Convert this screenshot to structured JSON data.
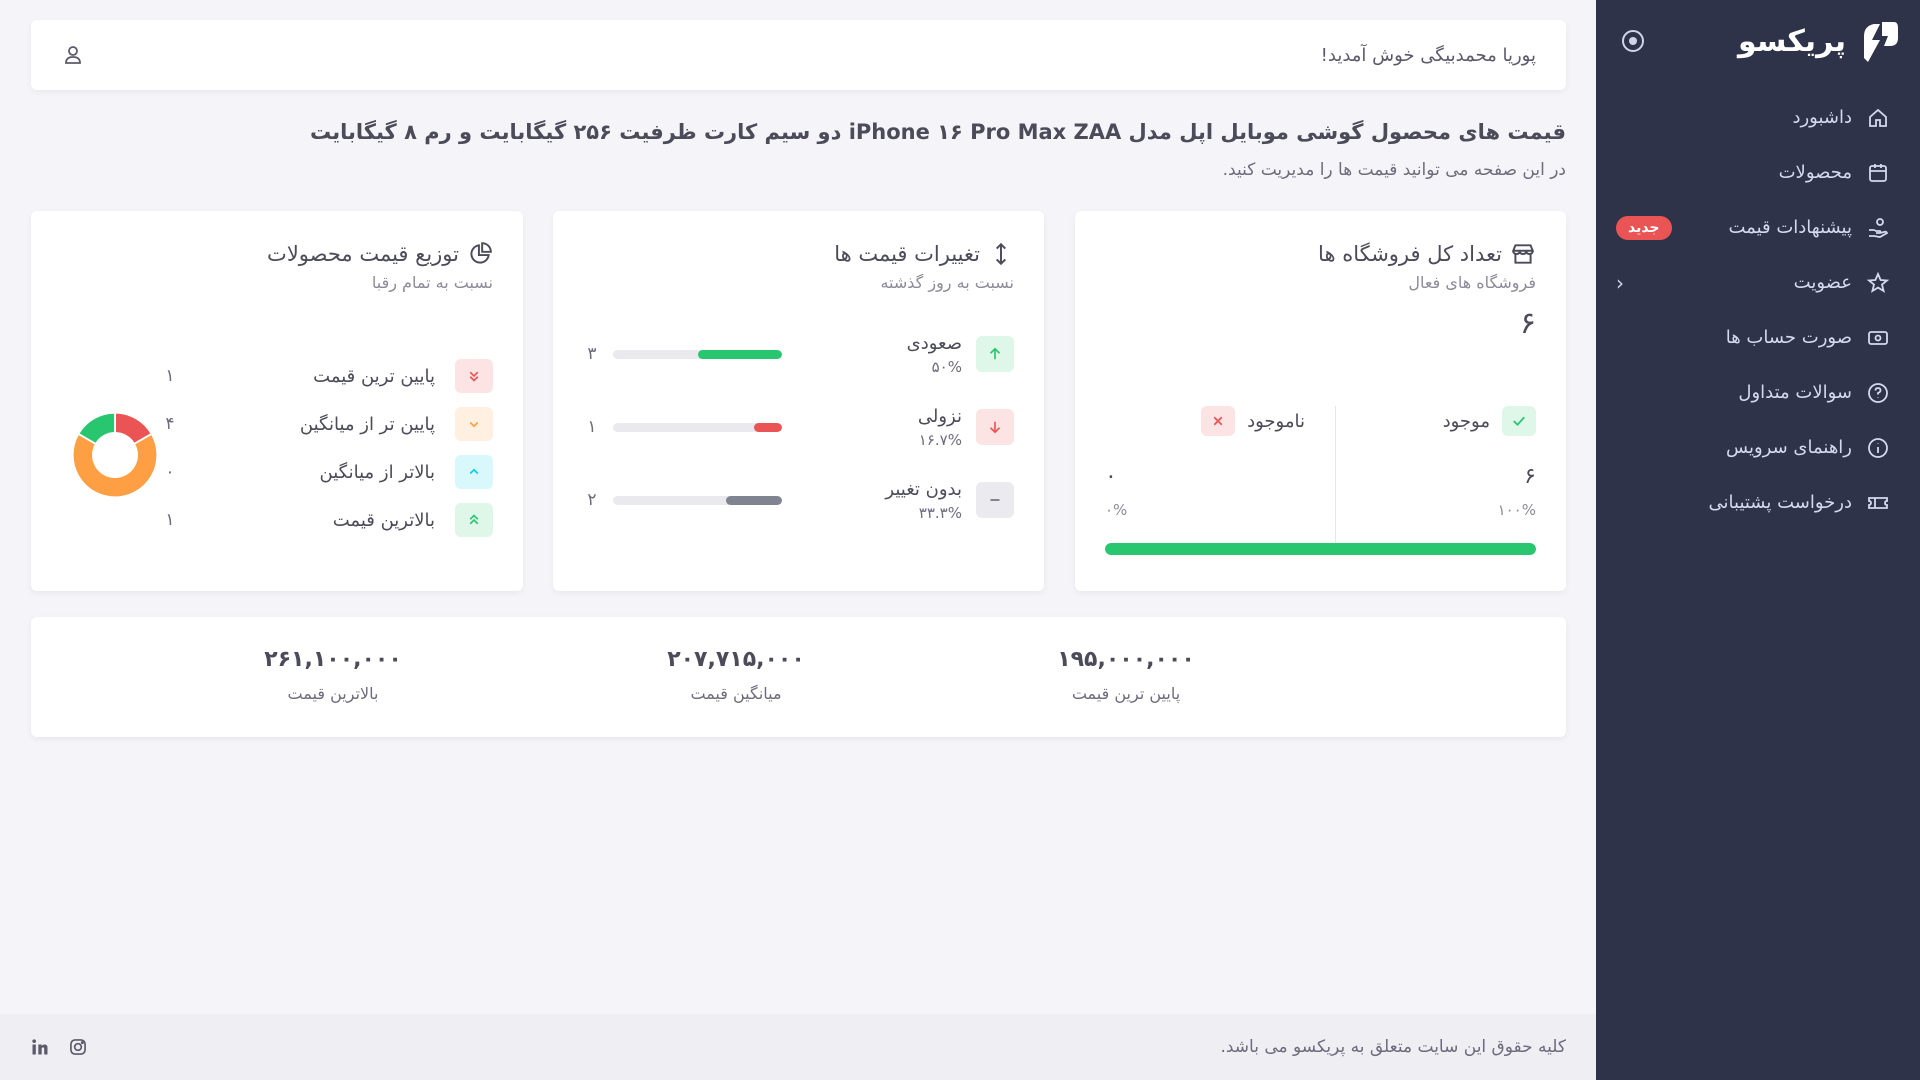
{
  "sidebar": {
    "brand": "پریکسو",
    "items": [
      {
        "label": "داشبورد",
        "icon": "home-icon"
      },
      {
        "label": "محصولات",
        "icon": "calendar-box-icon"
      },
      {
        "label": "پیشنهادات قیمت",
        "icon": "hand-coin-icon",
        "badge": "جدید"
      },
      {
        "label": "عضویت",
        "icon": "star-icon",
        "has_submenu": true
      },
      {
        "label": "صورت حساب ها",
        "icon": "cash-icon"
      },
      {
        "label": "سوالات متداول",
        "icon": "help-circle-icon"
      },
      {
        "label": "راهنمای سرویس",
        "icon": "info-circle-icon"
      },
      {
        "label": "درخواست پشتیبانی",
        "icon": "ticket-icon"
      }
    ]
  },
  "topbar": {
    "welcome": "پوریا محمدبیگی خوش آمدید!"
  },
  "page": {
    "title": "قیمت های محصول گوشی موبایل اپل مدل iPhone ۱۶ Pro Max ZAA دو سیم کارت ظرفیت ۲۵۶ گیگابایت و رم ۸ گیگابایت",
    "subtitle": "در این صفحه می توانید قیمت ها را مدیریت کنید."
  },
  "stores_card": {
    "title": "تعداد کل فروشگاه ها",
    "subtitle": "فروشگاه های فعال",
    "count": "۶",
    "in_stock": {
      "label": "موجود",
      "count": "۶",
      "percent": "۱۰۰%"
    },
    "out_of_stock": {
      "label": "ناموجود",
      "count": "۰",
      "percent": "۰%"
    },
    "in_stock_fraction": 1.0
  },
  "changes_card": {
    "title": "تغییرات قیمت ها",
    "subtitle": "نسبت به روز گذشته",
    "rows": [
      {
        "label": "صعودی",
        "percent": "۵۰%",
        "count": "۳",
        "fraction": 0.5,
        "color": "#28c76f"
      },
      {
        "label": "نزولی",
        "percent": "۱۶.۷%",
        "count": "۱",
        "fraction": 0.167,
        "color": "#ea5455"
      },
      {
        "label": "بدون تغییر",
        "percent": "۳۳.۳%",
        "count": "۲",
        "fraction": 0.333,
        "color": "#808390"
      }
    ]
  },
  "dist_card": {
    "title": "توزیع قیمت محصولات",
    "subtitle": "نسبت به تمام رقبا",
    "rows": [
      {
        "label": "پایین ترین قیمت",
        "count": "۱"
      },
      {
        "label": "پایین تر از میانگین",
        "count": "۴"
      },
      {
        "label": "بالاتر از میانگین",
        "count": "۰"
      },
      {
        "label": "بالاترین قیمت",
        "count": "۱"
      }
    ],
    "donut": [
      {
        "value": 1,
        "color": "#ea5455"
      },
      {
        "value": 4,
        "color": "#ff9f43"
      },
      {
        "value": 0,
        "color": "#00cfe8"
      },
      {
        "value": 1,
        "color": "#28c76f"
      }
    ]
  },
  "stats": {
    "min": {
      "value": "۱۹۵,۰۰۰,۰۰۰",
      "label": "پایین ترین قیمت"
    },
    "avg": {
      "value": "۲۰۷,۷۱۵,۰۰۰",
      "label": "میانگین قیمت"
    },
    "max": {
      "value": "۲۶۱,۱۰۰,۰۰۰",
      "label": "بالاترین قیمت"
    }
  },
  "footer": {
    "text": "کلیه حقوق این سایت متعلق به پریکسو می باشد."
  }
}
